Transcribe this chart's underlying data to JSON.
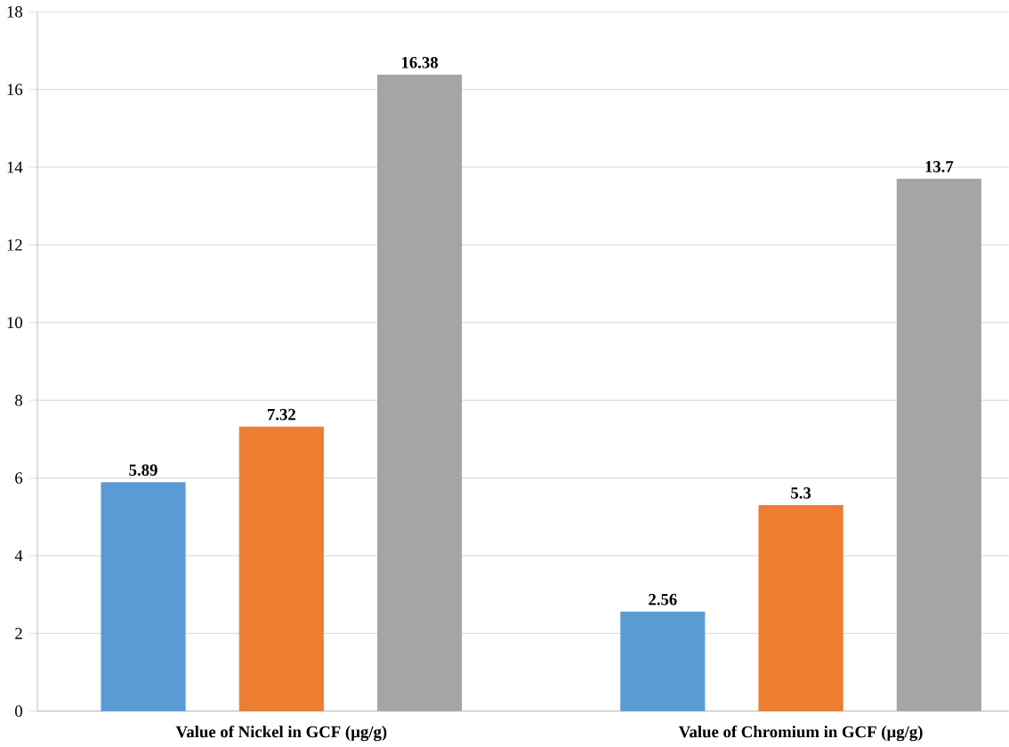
{
  "chart_data": {
    "type": "bar",
    "categories": [
      "Value of Nickel in GCF (µg/g)",
      "Value of Chromium in GCF (µg/g)"
    ],
    "series": [
      {
        "color": "#5b9bd5",
        "values": [
          5.89,
          2.56
        ]
      },
      {
        "color": "#ed7d31",
        "values": [
          7.32,
          5.3
        ]
      },
      {
        "color": "#a5a5a5",
        "values": [
          16.38,
          13.7
        ]
      }
    ],
    "ylim": [
      0,
      18
    ],
    "yticks": [
      0,
      2,
      4,
      6,
      8,
      10,
      12,
      14,
      16,
      18
    ],
    "grid": "y",
    "data_labels": true
  }
}
